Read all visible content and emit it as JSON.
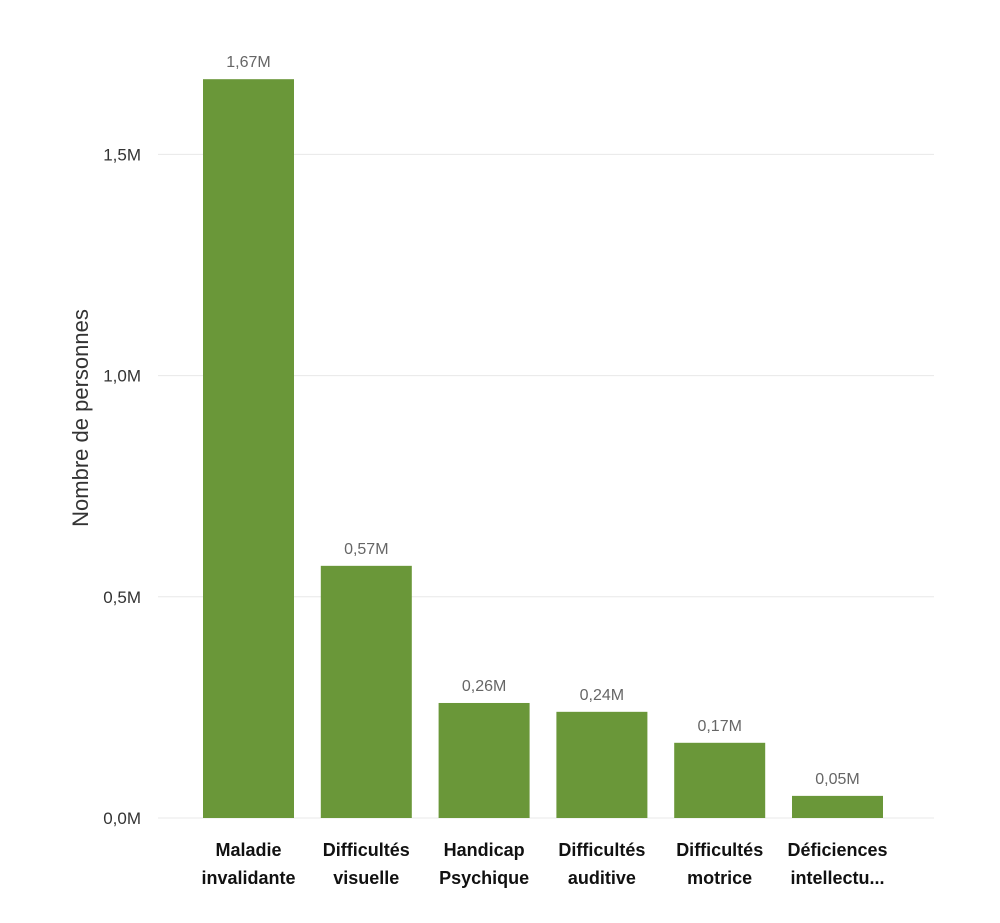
{
  "chart_data": {
    "type": "bar",
    "title": "",
    "xlabel": "",
    "ylabel": "Nombre de personnes",
    "ylim": [
      0,
      1.67
    ],
    "y_unit": "M",
    "yticks": [
      {
        "value": 0.0,
        "label": "0,0M"
      },
      {
        "value": 0.5,
        "label": "0,5M"
      },
      {
        "value": 1.0,
        "label": "1,0M"
      },
      {
        "value": 1.5,
        "label": "1,5M"
      }
    ],
    "categories": [
      [
        "Maladie",
        "invalidante"
      ],
      [
        "Difficultés",
        "visuelle"
      ],
      [
        "Handicap",
        "Psychique"
      ],
      [
        "Difficultés",
        "auditive"
      ],
      [
        "Difficultés",
        "motrice"
      ],
      [
        "Déficiences",
        "intellectu..."
      ]
    ],
    "values": [
      1.67,
      0.57,
      0.26,
      0.24,
      0.17,
      0.05
    ],
    "data_labels": [
      "1,67M",
      "0,57M",
      "0,26M",
      "0,24M",
      "0,17M",
      "0,05M"
    ],
    "bar_color": "#6a9739",
    "grid": true,
    "legend": "none"
  }
}
